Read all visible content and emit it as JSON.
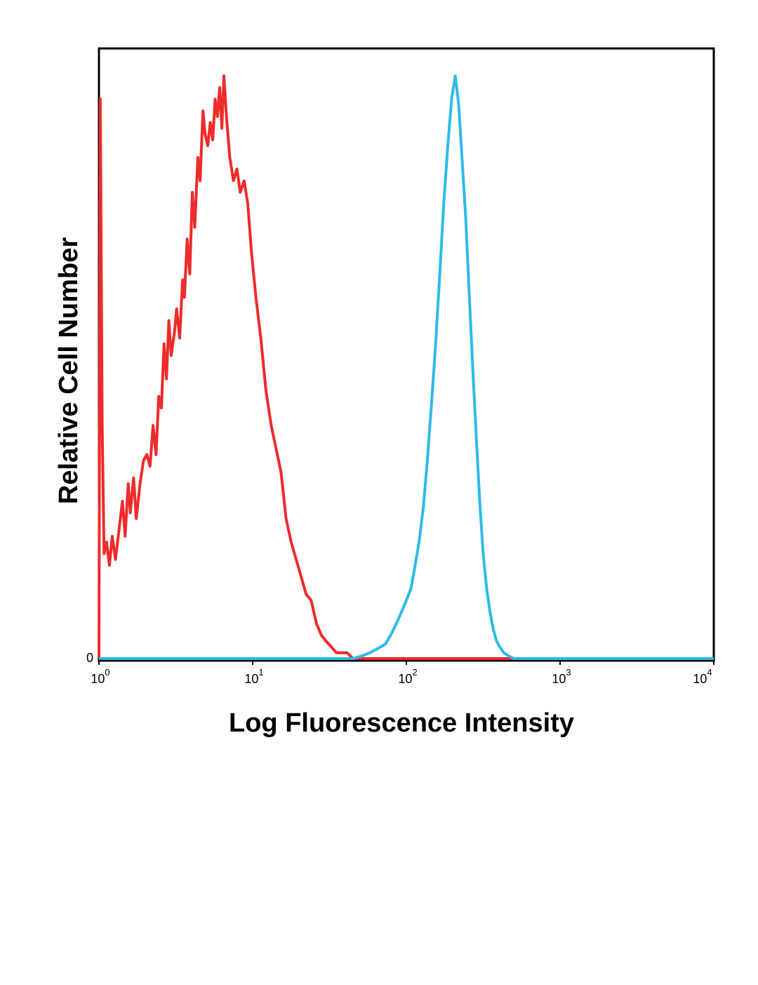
{
  "chart_data": {
    "type": "line",
    "title": "",
    "xlabel": "Log Fluorescence Intensity",
    "ylabel": "Relative Cell Number",
    "x_scale": "log",
    "xlim": [
      1,
      10000
    ],
    "ylim": [
      0,
      100
    ],
    "x_ticks": [
      {
        "base": "10",
        "exp": "0"
      },
      {
        "base": "10",
        "exp": "1"
      },
      {
        "base": "10",
        "exp": "2"
      },
      {
        "base": "10",
        "exp": "3"
      },
      {
        "base": "10",
        "exp": "4"
      }
    ],
    "y_ticks": [
      {
        "label": "0"
      }
    ],
    "grid": false,
    "legend": "none",
    "series": [
      {
        "color": "#ee2b2b",
        "points": [
          [
            1.0,
            0
          ],
          [
            1.02,
            96
          ],
          [
            1.05,
            40
          ],
          [
            1.08,
            18
          ],
          [
            1.12,
            20
          ],
          [
            1.17,
            16
          ],
          [
            1.22,
            21
          ],
          [
            1.28,
            17
          ],
          [
            1.35,
            22
          ],
          [
            1.42,
            27
          ],
          [
            1.48,
            21
          ],
          [
            1.55,
            30
          ],
          [
            1.6,
            25
          ],
          [
            1.68,
            31
          ],
          [
            1.75,
            24
          ],
          [
            1.85,
            30
          ],
          [
            1.95,
            34
          ],
          [
            2.05,
            35
          ],
          [
            2.15,
            33
          ],
          [
            2.25,
            40
          ],
          [
            2.35,
            35
          ],
          [
            2.45,
            45
          ],
          [
            2.55,
            43
          ],
          [
            2.65,
            54
          ],
          [
            2.75,
            48
          ],
          [
            2.85,
            58
          ],
          [
            2.95,
            52
          ],
          [
            3.1,
            56
          ],
          [
            3.2,
            60
          ],
          [
            3.35,
            55
          ],
          [
            3.5,
            65
          ],
          [
            3.6,
            62
          ],
          [
            3.75,
            72
          ],
          [
            3.9,
            66
          ],
          [
            4.05,
            80
          ],
          [
            4.2,
            74
          ],
          [
            4.4,
            86
          ],
          [
            4.55,
            82
          ],
          [
            4.75,
            94
          ],
          [
            4.9,
            90
          ],
          [
            5.1,
            88
          ],
          [
            5.3,
            92
          ],
          [
            5.5,
            89
          ],
          [
            5.7,
            96
          ],
          [
            5.9,
            93
          ],
          [
            6.1,
            98
          ],
          [
            6.3,
            91
          ],
          [
            6.5,
            100
          ],
          [
            6.8,
            92
          ],
          [
            7.1,
            86
          ],
          [
            7.5,
            82
          ],
          [
            7.9,
            84
          ],
          [
            8.3,
            80
          ],
          [
            8.8,
            82
          ],
          [
            9.3,
            78
          ],
          [
            9.8,
            70
          ],
          [
            10.5,
            62
          ],
          [
            11.3,
            55
          ],
          [
            12.2,
            46
          ],
          [
            13.2,
            40
          ],
          [
            14.2,
            36
          ],
          [
            15.3,
            32
          ],
          [
            16.5,
            24
          ],
          [
            17.8,
            20
          ],
          [
            19.2,
            17
          ],
          [
            20.7,
            14
          ],
          [
            22.3,
            11
          ],
          [
            24.0,
            10
          ],
          [
            26.0,
            6
          ],
          [
            28.0,
            4
          ],
          [
            30.0,
            3
          ],
          [
            32.5,
            2
          ],
          [
            35.0,
            1
          ],
          [
            38.0,
            1
          ],
          [
            41.0,
            1
          ],
          [
            45.0,
            0
          ],
          [
            50.0,
            0
          ],
          [
            100,
            0
          ],
          [
            300,
            0
          ],
          [
            1000,
            0
          ],
          [
            10000,
            0
          ]
        ]
      },
      {
        "color": "#2bbbea",
        "points": [
          [
            1.0,
            0
          ],
          [
            45,
            0
          ],
          [
            52,
            0.5
          ],
          [
            58,
            1
          ],
          [
            63,
            1.5
          ],
          [
            68,
            2
          ],
          [
            73,
            2.5
          ],
          [
            79,
            4
          ],
          [
            86,
            6
          ],
          [
            93,
            8
          ],
          [
            100,
            10
          ],
          [
            107,
            12
          ],
          [
            114,
            16
          ],
          [
            121,
            20
          ],
          [
            129,
            26
          ],
          [
            137,
            34
          ],
          [
            146,
            44
          ],
          [
            155,
            54
          ],
          [
            165,
            66
          ],
          [
            175,
            78
          ],
          [
            186,
            88
          ],
          [
            197,
            96
          ],
          [
            208,
            100
          ],
          [
            219,
            95
          ],
          [
            230,
            86
          ],
          [
            243,
            76
          ],
          [
            256,
            63
          ],
          [
            270,
            50
          ],
          [
            285,
            38
          ],
          [
            300,
            27
          ],
          [
            316,
            18
          ],
          [
            333,
            12
          ],
          [
            350,
            8
          ],
          [
            368,
            5
          ],
          [
            386,
            3
          ],
          [
            405,
            2
          ],
          [
            430,
            1
          ],
          [
            460,
            0.5
          ],
          [
            500,
            0
          ],
          [
            800,
            0
          ],
          [
            2000,
            0
          ],
          [
            10000,
            0
          ]
        ]
      }
    ]
  }
}
